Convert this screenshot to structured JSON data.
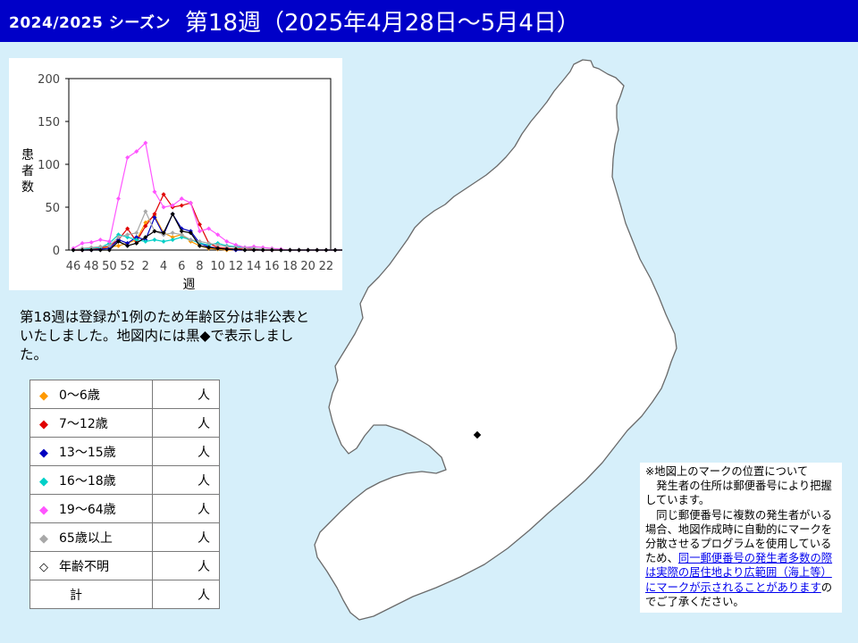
{
  "header": {
    "season": "2024/2025 シーズン",
    "week_title": "第18週（2025年4月28日～5月4日）"
  },
  "chart_data": {
    "type": "line",
    "x_tick_labels": [
      "46",
      "48",
      "50",
      "52",
      "2",
      "4",
      "6",
      "8",
      "10",
      "12",
      "14",
      "16",
      "18",
      "20",
      "22"
    ],
    "xlabel": "週",
    "ylabel": "患者数",
    "ylim": [
      0,
      200
    ],
    "y_ticks": [
      0,
      50,
      100,
      150,
      200
    ],
    "grid": false,
    "series": [
      {
        "color": "#ff9900",
        "values": [
          0,
          0,
          2,
          1,
          4,
          5,
          8,
          12,
          32,
          40,
          20,
          15,
          18,
          10,
          5,
          2,
          1,
          0,
          0,
          0,
          0,
          0,
          0,
          0,
          0,
          0,
          0,
          0,
          0,
          0,
          0,
          0,
          0,
          0,
          0,
          0
        ]
      },
      {
        "color": "#e00000",
        "values": [
          0,
          0,
          1,
          2,
          5,
          12,
          25,
          10,
          28,
          42,
          65,
          50,
          52,
          55,
          30,
          8,
          3,
          2,
          1,
          2,
          1,
          0,
          0,
          0,
          0,
          0,
          0,
          0,
          0,
          0,
          0,
          0,
          0,
          0,
          0,
          0
        ]
      },
      {
        "color": "#0000c0",
        "values": [
          0,
          0,
          0,
          1,
          2,
          12,
          8,
          15,
          12,
          38,
          18,
          42,
          25,
          22,
          8,
          4,
          2,
          1,
          0,
          0,
          0,
          0,
          0,
          0,
          0,
          0,
          0,
          0,
          0,
          0,
          0,
          0,
          0,
          0,
          0,
          0
        ]
      },
      {
        "color": "#00d0c8",
        "values": [
          0,
          1,
          2,
          3,
          8,
          18,
          15,
          12,
          10,
          12,
          10,
          12,
          15,
          12,
          8,
          6,
          8,
          5,
          4,
          3,
          2,
          1,
          1,
          0,
          0,
          0,
          0,
          0,
          0,
          0,
          0,
          0,
          0,
          0,
          0,
          0
        ]
      },
      {
        "color": "#ff55ff",
        "values": [
          2,
          8,
          9,
          12,
          10,
          60,
          108,
          115,
          125,
          68,
          50,
          52,
          60,
          55,
          22,
          25,
          18,
          10,
          6,
          3,
          4,
          3,
          2,
          1,
          0,
          0,
          0,
          0,
          0,
          0,
          0,
          0,
          0,
          0,
          0,
          0
        ]
      },
      {
        "color": "#a8a8a8",
        "values": [
          0,
          2,
          3,
          4,
          5,
          15,
          18,
          20,
          45,
          22,
          18,
          20,
          18,
          12,
          10,
          8,
          6,
          4,
          3,
          2,
          2,
          1,
          1,
          0,
          0,
          0,
          0,
          0,
          0,
          0,
          0,
          0,
          0,
          0,
          0,
          0
        ]
      },
      {
        "color": "#000000",
        "values": [
          0,
          0,
          0,
          0,
          0,
          10,
          5,
          8,
          15,
          22,
          20,
          42,
          22,
          20,
          5,
          3,
          2,
          1,
          1,
          0,
          0,
          0,
          0,
          0,
          0,
          0,
          0,
          0,
          0,
          0,
          0,
          0,
          0,
          0,
          0,
          0
        ]
      }
    ]
  },
  "notice": {
    "text": "第18週は登録が1例のため年齢区分は非公表といたしました。地図内には黒◆で表示しました。"
  },
  "legend": {
    "rows": [
      {
        "label": "0～6歳",
        "value": "人",
        "color": "#ff9900",
        "marker": "◆"
      },
      {
        "label": "7～12歳",
        "value": "人",
        "color": "#e00000",
        "marker": "◆"
      },
      {
        "label": "13～15歳",
        "value": "人",
        "color": "#0000c0",
        "marker": "◆"
      },
      {
        "label": "16～18歳",
        "value": "人",
        "color": "#00d0c8",
        "marker": "◆"
      },
      {
        "label": "19～64歳",
        "value": "人",
        "color": "#ff55ff",
        "marker": "◆"
      },
      {
        "label": "65歳以上",
        "value": "人",
        "color": "#a8a8a8",
        "marker": "◆"
      },
      {
        "label": "年齢不明",
        "value": "人",
        "color": "#000000",
        "marker": "◇"
      }
    ],
    "total": {
      "label": "計",
      "value": "人"
    }
  },
  "map": {
    "land_color": "#ffffff",
    "sea_color": "#d6effa",
    "case_markers": [
      {
        "marker": "◆",
        "color": "#000000"
      }
    ]
  },
  "footnote": {
    "title": "※地図上のマークの位置について",
    "p1": "発生者の住所は郵便番号により把握しています。",
    "p2": "同じ郵便番号に複数の発生者がいる場合、地図作成時に自動的にマークを分散させるプログラムを使用しているため、",
    "link": "同一郵便番号の発生者多数の際は実際の居住地より広範囲（海上等）にマークが示されることがあります",
    "p3": "のでご了承ください。"
  }
}
